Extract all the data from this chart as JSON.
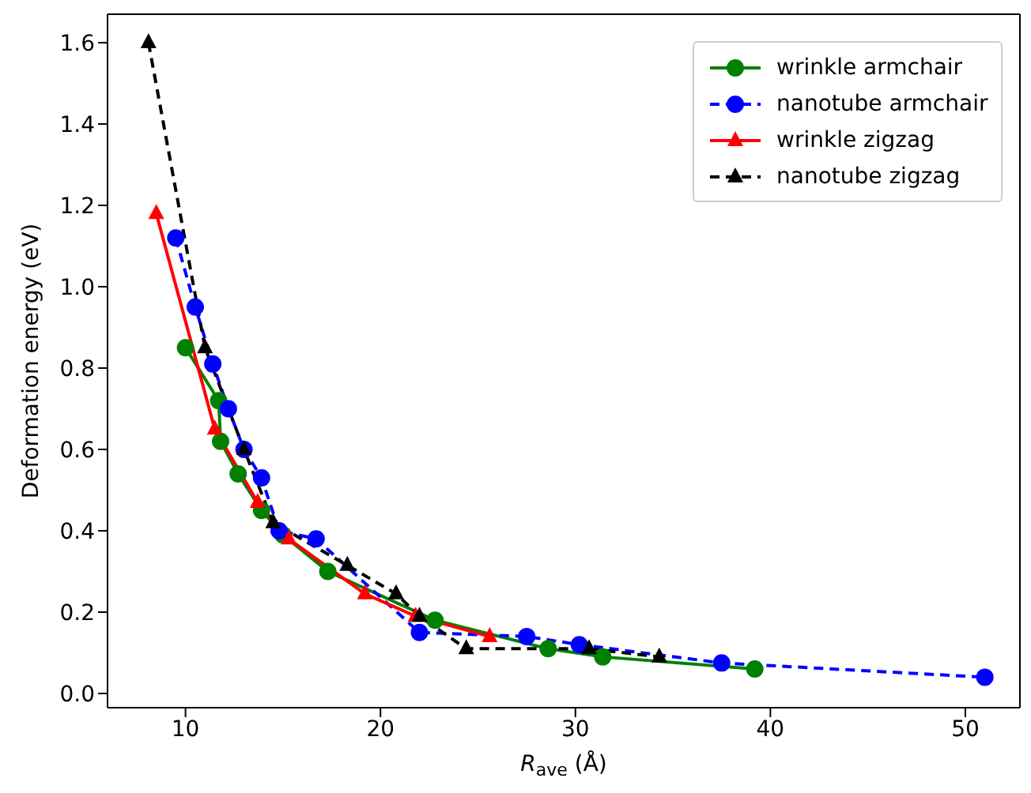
{
  "chart_data": {
    "type": "line",
    "xlabel": "R$_{ave}$ (Å)",
    "ylabel": "Deformation energy (eV)",
    "xlim": [
      6,
      52.8
    ],
    "ylim": [
      -0.035,
      1.67
    ],
    "xticks": [
      10,
      20,
      30,
      40,
      50
    ],
    "yticks": [
      {
        "value": 0,
        "label": "0.0"
      },
      {
        "value": 0.2,
        "label": "0.2"
      },
      {
        "value": 0.4,
        "label": "0.4"
      },
      {
        "value": 0.6,
        "label": "0.6"
      },
      {
        "value": 0.8,
        "label": "0.8"
      },
      {
        "value": 1.0,
        "label": "1.0"
      },
      {
        "value": 1.2,
        "label": "1.2"
      },
      {
        "value": 1.4,
        "label": "1.4"
      },
      {
        "value": 1.6,
        "label": "1.6"
      }
    ],
    "grid": false,
    "legend": "top right",
    "series": [
      {
        "name": "wrinkle armchair",
        "color": "#008000",
        "marker": "circle",
        "line_style": "solid",
        "x": [
          10.0,
          11.7,
          11.8,
          12.7,
          13.9,
          15.0,
          17.3,
          22.8,
          28.6,
          31.4,
          39.2
        ],
        "values": [
          0.85,
          0.72,
          0.62,
          0.54,
          0.45,
          0.39,
          0.3,
          0.18,
          0.11,
          0.09,
          0.06
        ]
      },
      {
        "name": "nanotube armchair",
        "color": "#0000ff",
        "marker": "circle",
        "line_style": "dashed",
        "x": [
          9.5,
          10.5,
          11.4,
          12.2,
          13.0,
          13.9,
          14.8,
          16.7,
          22.0,
          27.5,
          30.2,
          37.5,
          51.0
        ],
        "values": [
          1.12,
          0.95,
          0.81,
          0.7,
          0.6,
          0.53,
          0.4,
          0.38,
          0.15,
          0.14,
          0.12,
          0.075,
          0.04
        ]
      },
      {
        "name": "wrinkle zigzag",
        "color": "#ff0000",
        "marker": "triangle",
        "line_style": "solid",
        "x": [
          8.5,
          11.5,
          13.7,
          15.3,
          19.2,
          21.8,
          25.6
        ],
        "values": [
          1.18,
          0.65,
          0.47,
          0.38,
          0.245,
          0.19,
          0.14
        ]
      },
      {
        "name": "nanotube zigzag",
        "color": "#000000",
        "marker": "triangle",
        "line_style": "dashed",
        "x": [
          8.1,
          11.0,
          13.0,
          14.5,
          18.3,
          20.8,
          22.0,
          24.4,
          30.7,
          34.3
        ],
        "values": [
          1.6,
          0.85,
          0.6,
          0.42,
          0.315,
          0.245,
          0.19,
          0.11,
          0.11,
          0.09
        ]
      }
    ]
  }
}
